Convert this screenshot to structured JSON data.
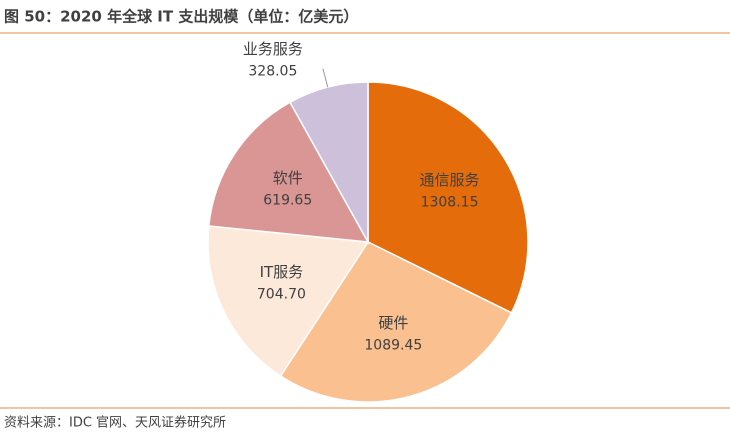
{
  "chart_data": {
    "type": "pie",
    "title": "图 50：2020 年全球 IT 支出规模（单位：亿美元）",
    "source": "资料来源：IDC 官网、天风证券研究所",
    "categories": [
      "通信服务",
      "硬件",
      "IT服务",
      "软件",
      "业务服务"
    ],
    "values": [
      1308.15,
      1089.45,
      704.7,
      619.65,
      328.05
    ],
    "value_labels": [
      "1308.15",
      "1089.45",
      "704.70",
      "619.65",
      "328.05"
    ],
    "colors": [
      "#e46c0a",
      "#fac090",
      "#fde9d9",
      "#d99694",
      "#ccc0da"
    ]
  }
}
